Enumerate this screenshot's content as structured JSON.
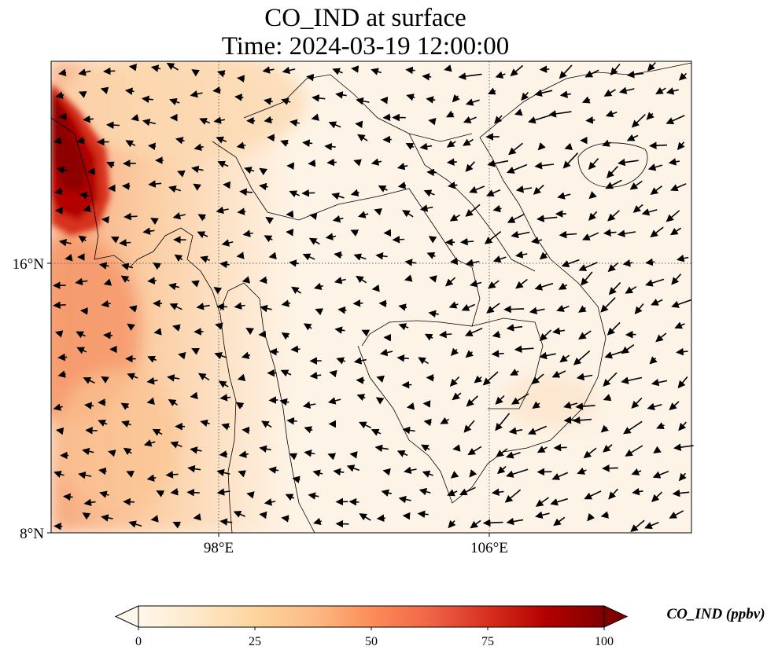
{
  "title": {
    "line1": "CO_IND at surface",
    "line2": "Time: 2024-03-19 12:00:00"
  },
  "map": {
    "lon_ticks": [
      "98°E",
      "106°E"
    ],
    "lat_ticks": [
      "16°N",
      "8°N"
    ],
    "gridlines": true,
    "colormap_colors": [
      "#fff7ec",
      "#fee8c8",
      "#fdd49e",
      "#fdbb84",
      "#fc8d59",
      "#ef6548",
      "#d7301f",
      "#b30000",
      "#7f0000"
    ]
  },
  "colorbar": {
    "ticks": [
      "0",
      "25",
      "50",
      "75",
      "100"
    ],
    "label": "CO_IND (ppbv)",
    "range": [
      0,
      100
    ],
    "extend": "both"
  }
}
